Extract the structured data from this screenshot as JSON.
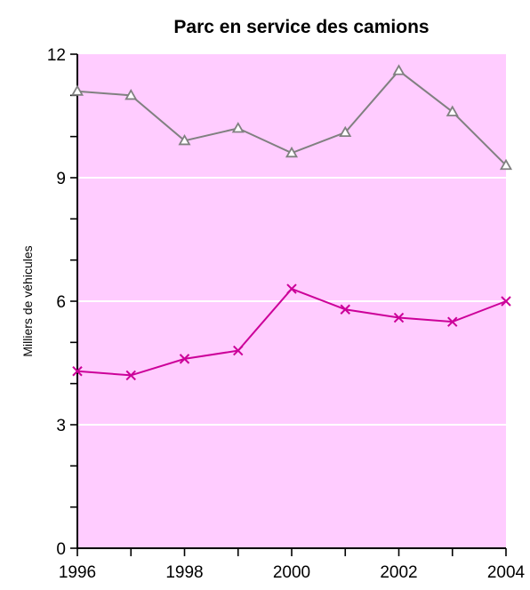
{
  "chart_data": {
    "type": "line",
    "title": "Parc en service des camions",
    "xlabel": "",
    "ylabel": "Milliers de véhicules",
    "x": [
      1996,
      1997,
      1998,
      1999,
      2000,
      2001,
      2002,
      2003,
      2004
    ],
    "x_tick_labels": [
      "1996",
      "1998",
      "2000",
      "2002",
      "2004"
    ],
    "y_tick_labels": [
      "0",
      "3",
      "6",
      "9",
      "12"
    ],
    "xlim": [
      1996,
      2004
    ],
    "ylim": [
      0,
      12
    ],
    "grid": true,
    "colors": {
      "plot_background": "#FFCCFF",
      "gridline": "#FFFFFF"
    },
    "series": [
      {
        "marker": "triangle",
        "color": "#808080",
        "values": [
          11.1,
          11.0,
          9.9,
          10.2,
          9.6,
          10.1,
          11.6,
          10.6,
          9.3
        ]
      },
      {
        "marker": "x",
        "color": "#CC0099",
        "values": [
          4.3,
          4.2,
          4.6,
          4.8,
          6.3,
          5.8,
          5.6,
          5.5,
          6.0
        ]
      }
    ]
  }
}
